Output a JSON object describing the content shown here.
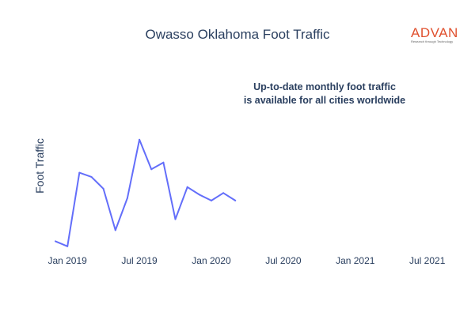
{
  "header": {
    "title": "Owasso Oklahoma Foot Traffic",
    "logo_text": "ADVAN",
    "logo_tagline": "Research through Technology"
  },
  "annotation": {
    "line1": "Up-to-date monthly foot traffic",
    "line2": "is available for all cities worldwide"
  },
  "colors": {
    "line": "#636efa",
    "text": "#2a3f5f",
    "brand": "#e0502e"
  },
  "chart_data": {
    "type": "line",
    "title": "Owasso Oklahoma Foot Traffic",
    "xlabel": "",
    "ylabel": "Foot Traffic",
    "x_ticks": [
      "Jan 2019",
      "Jul 2019",
      "Jan 2020",
      "Jul 2020",
      "Jan 2021",
      "Jul 2021"
    ],
    "series": [
      {
        "x": [
          "2018-12",
          "2019-01",
          "2019-02",
          "2019-03",
          "2019-04",
          "2019-05",
          "2019-06",
          "2019-07",
          "2019-08",
          "2019-09",
          "2019-10",
          "2019-11",
          "2019-12",
          "2020-01",
          "2020-02",
          "2020-03"
        ],
        "values": [
          9,
          3,
          90,
          85,
          71,
          22,
          60,
          129,
          94,
          102,
          35,
          73,
          64,
          57,
          66,
          57
        ]
      }
    ],
    "y_range": [
      0,
      140
    ],
    "x_range": [
      "2018-12",
      "2021-09"
    ],
    "grid": false,
    "legend": "none"
  }
}
